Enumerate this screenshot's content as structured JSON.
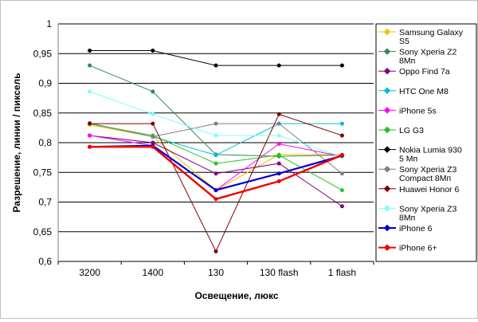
{
  "chart_data": {
    "type": "line",
    "title": "",
    "xlabel": "Освещение, люкс",
    "ylabel": "Разрешение, линии / пиксель",
    "categories": [
      "3200",
      "1400",
      "130",
      "130 flash",
      "1 flash"
    ],
    "ylim": [
      0.6,
      1.0
    ],
    "yticks": [
      "0,6",
      "0,65",
      "0,7",
      "0,75",
      "0,8",
      "0,85",
      "0,9",
      "0,95",
      "1"
    ],
    "yticks_values": [
      0.6,
      0.65,
      0.7,
      0.75,
      0.8,
      0.85,
      0.9,
      0.95,
      1.0
    ],
    "grid": "horizontal",
    "legend_position": "right",
    "series": [
      {
        "name": "Samsung Galaxy S5",
        "color": "#f2c200",
        "values": [
          0.83,
          0.81,
          0.72,
          0.78,
          0.78
        ]
      },
      {
        "name": "Sony Xperia Z2 8Мп",
        "color": "#2e8b57",
        "values": [
          0.93,
          0.886,
          0.78,
          0.777,
          0.779
        ]
      },
      {
        "name": "Oppo Find 7a",
        "color": "#800080",
        "values": [
          0.812,
          0.8,
          0.748,
          0.765,
          0.693
        ]
      },
      {
        "name": "HTC One M8",
        "color": "#00bcd4",
        "values": [
          0.833,
          0.81,
          0.779,
          0.832,
          0.832
        ]
      },
      {
        "name": "iPhone 5s",
        "color": "#ff00ff",
        "values": [
          0.812,
          0.795,
          0.72,
          0.798,
          0.777
        ]
      },
      {
        "name": "LG G3",
        "color": "#22c422",
        "values": [
          0.832,
          0.812,
          0.765,
          0.779,
          0.72
        ]
      },
      {
        "name": "Nokia Lumia 930 5 Мп",
        "color": "#000000",
        "values": [
          0.955,
          0.955,
          0.93,
          0.93,
          0.93
        ]
      },
      {
        "name": "Sony Xperia Z3 Compact 8Мп",
        "color": "#808080",
        "values": [
          0.832,
          0.81,
          0.832,
          0.832,
          0.748
        ]
      },
      {
        "name": "Huawei Honor 6",
        "color": "#800000",
        "values": [
          0.832,
          0.832,
          0.617,
          0.848,
          0.812
        ]
      },
      {
        "name": "Sony Xperia Z3 8Мп",
        "color": "#7fffff",
        "values": [
          0.886,
          0.848,
          0.812,
          0.812,
          0.776
        ]
      },
      {
        "name": "iPhone 6",
        "color": "#0000cc",
        "values": [
          0.793,
          0.795,
          0.72,
          0.748,
          0.778
        ]
      },
      {
        "name": "iPhone 6+",
        "color": "#ee0000",
        "values": [
          0.793,
          0.793,
          0.705,
          0.735,
          0.779
        ]
      }
    ]
  }
}
